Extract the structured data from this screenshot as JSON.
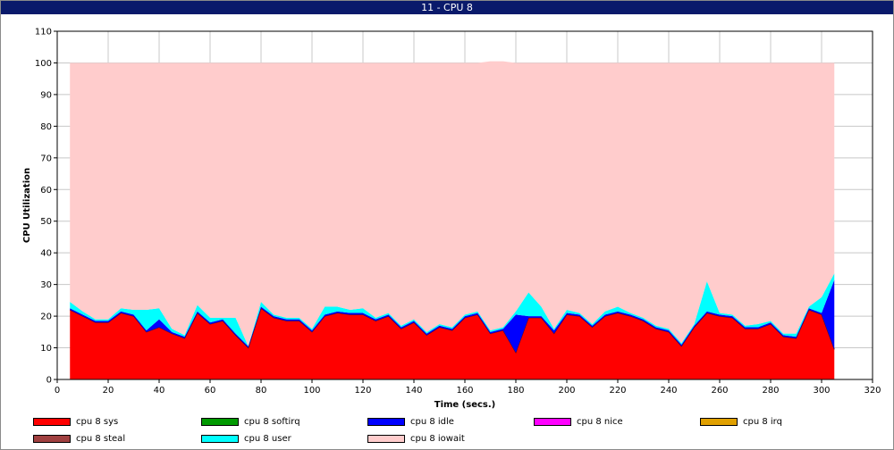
{
  "window": {
    "title": "11 - CPU 8"
  },
  "chart_data": {
    "type": "area",
    "stacked": true,
    "title": "",
    "xlabel": "Time (secs.)",
    "ylabel": "CPU Utilization",
    "xlim": [
      0,
      320
    ],
    "ylim": [
      0,
      110
    ],
    "xticks": [
      0,
      20,
      40,
      60,
      80,
      100,
      120,
      140,
      160,
      180,
      200,
      220,
      240,
      260,
      280,
      300,
      320
    ],
    "yticks": [
      0,
      10,
      20,
      30,
      40,
      50,
      60,
      70,
      80,
      90,
      100,
      110
    ],
    "grid": true,
    "legend_position": "bottom",
    "x": [
      5,
      10,
      15,
      20,
      25,
      30,
      35,
      40,
      45,
      50,
      55,
      60,
      65,
      70,
      75,
      80,
      85,
      90,
      95,
      100,
      105,
      110,
      115,
      120,
      125,
      130,
      135,
      140,
      145,
      150,
      155,
      160,
      165,
      170,
      175,
      180,
      185,
      190,
      195,
      200,
      205,
      210,
      215,
      220,
      225,
      230,
      235,
      240,
      245,
      250,
      255,
      260,
      265,
      270,
      275,
      280,
      285,
      290,
      295,
      300,
      305
    ],
    "series": [
      {
        "name": "cpu 8 sys",
        "color": "#ff0000",
        "values": [
          22,
          20,
          18,
          18,
          21,
          20,
          15,
          16.5,
          14.5,
          13,
          21,
          17.5,
          18.5,
          14,
          10,
          22.5,
          19.5,
          18.5,
          18.5,
          15,
          20,
          21,
          20.5,
          20.5,
          18.5,
          20,
          16,
          18,
          14,
          16.5,
          15.5,
          19.5,
          20.5,
          14.5,
          15.5,
          8.5,
          19.5,
          19.5,
          14.5,
          20.5,
          20,
          16.5,
          20,
          21,
          20,
          18.5,
          16,
          15,
          10.5,
          16.5,
          21,
          20,
          19.5,
          16,
          16,
          17.5,
          13.5,
          13,
          22,
          20.5,
          9.5
        ]
      },
      {
        "name": "cpu 8 softirq",
        "color": "#009900",
        "values": [
          0,
          0,
          0,
          0,
          0,
          0,
          0,
          0,
          0,
          0,
          0,
          0,
          0,
          0,
          0,
          0,
          0,
          0,
          0,
          0,
          0,
          0,
          0,
          0,
          0,
          0,
          0,
          0,
          0,
          0,
          0,
          0,
          0,
          0,
          0,
          0,
          0,
          0,
          0,
          0,
          0,
          0,
          0,
          0,
          0,
          0,
          0,
          0,
          0,
          0,
          0,
          0,
          0,
          0,
          0,
          0,
          0,
          0,
          0,
          0,
          0
        ]
      },
      {
        "name": "cpu 8 idle",
        "color": "#0000ff",
        "values": [
          0.5,
          0.5,
          0.5,
          0.5,
          0.5,
          0.5,
          0.5,
          2.5,
          0.5,
          0.5,
          0.5,
          0.5,
          0.5,
          0.5,
          0.5,
          0.5,
          0.5,
          0.5,
          0.5,
          0.5,
          0.5,
          0.5,
          0.5,
          0.5,
          0.5,
          0.5,
          0.5,
          0.5,
          0.5,
          0.5,
          0.5,
          0.5,
          0.5,
          0.5,
          0.5,
          12,
          0.5,
          0.5,
          1,
          0.5,
          0.5,
          0.5,
          0.5,
          0.5,
          0.5,
          0.5,
          0.5,
          0.5,
          0.5,
          0.5,
          0.5,
          0.5,
          0.5,
          0.5,
          0.5,
          0.5,
          0.5,
          0.5,
          0.5,
          0.5,
          22
        ]
      },
      {
        "name": "cpu 8 nice",
        "color": "#ff00ff",
        "values": [
          0,
          0,
          0,
          0,
          0,
          0,
          0,
          0,
          0,
          0,
          0,
          0,
          0,
          0,
          0,
          0,
          0,
          0,
          0,
          0,
          0,
          0,
          0,
          0,
          0,
          0,
          0,
          0,
          0,
          0,
          0,
          0,
          0,
          0,
          0,
          0,
          0,
          0,
          0,
          0,
          0,
          0,
          0,
          0,
          0,
          0,
          0,
          0,
          0,
          0,
          0,
          0,
          0,
          0,
          0,
          0,
          0,
          0,
          0,
          0,
          0
        ]
      },
      {
        "name": "cpu 8 irq",
        "color": "#e0a000",
        "values": [
          0,
          0,
          0,
          0,
          0,
          0,
          0,
          0,
          0,
          0,
          0,
          0,
          0,
          0,
          0,
          0,
          0,
          0,
          0,
          0,
          0,
          0,
          0,
          0,
          0,
          0,
          0,
          0,
          0,
          0,
          0,
          0,
          0,
          0,
          0,
          0,
          0,
          0,
          0,
          0,
          0,
          0,
          0,
          0,
          0,
          0,
          0,
          0,
          0,
          0,
          0,
          0,
          0,
          0,
          0,
          0,
          0,
          0,
          0,
          0,
          0
        ]
      },
      {
        "name": "cpu 8 steal",
        "color": "#a04040",
        "values": [
          0,
          0,
          0,
          0,
          0,
          0,
          0,
          0,
          0,
          0,
          0,
          0,
          0,
          0,
          0,
          0,
          0,
          0,
          0,
          0,
          0,
          0,
          0,
          0,
          0,
          0,
          0,
          0,
          0,
          0,
          0,
          0,
          0,
          0,
          0,
          0,
          0,
          0,
          0,
          0,
          0,
          0,
          0,
          0,
          0,
          0,
          0,
          0,
          0,
          0,
          0,
          0,
          0,
          0,
          0,
          0,
          0,
          0,
          0,
          0,
          0
        ]
      },
      {
        "name": "cpu 8 user",
        "color": "#00ffff",
        "values": [
          2,
          1,
          0.5,
          0.5,
          1,
          1.5,
          6.5,
          3.5,
          1,
          0.5,
          2,
          1.5,
          0.5,
          5,
          0,
          1.5,
          0.5,
          0.5,
          0.5,
          0.5,
          2.5,
          1.5,
          1,
          1.5,
          0.5,
          0.5,
          0.5,
          0.5,
          0.5,
          0.5,
          0.5,
          0.5,
          0.5,
          0.5,
          0.5,
          1,
          7.5,
          3,
          0.5,
          1,
          0.5,
          0.5,
          1,
          1.5,
          0.5,
          0.5,
          0.5,
          0.5,
          0.5,
          0.5,
          9.5,
          0.5,
          0.5,
          0.5,
          1,
          0.5,
          0.5,
          1,
          0.5,
          5,
          2
        ]
      },
      {
        "name": "cpu 8 iowait",
        "color": "#ffcccc",
        "values": [
          75.5,
          78.5,
          81,
          81,
          77.5,
          78,
          78,
          77.5,
          84,
          86,
          76.5,
          80.5,
          80.5,
          80.5,
          89.5,
          75.5,
          79.5,
          80.5,
          80.5,
          84,
          77,
          77,
          78,
          77.5,
          80.5,
          79,
          83,
          81,
          85,
          82.5,
          83.5,
          79.5,
          78.5,
          85,
          84,
          78.5,
          72.5,
          77,
          84,
          78,
          79,
          82.5,
          78.5,
          77,
          79,
          80.5,
          83,
          84,
          88.5,
          82.5,
          69,
          79,
          79.5,
          83,
          82.5,
          81.5,
          85.5,
          85.5,
          77,
          74,
          66.5
        ]
      }
    ]
  },
  "legend": [
    {
      "label": "cpu 8 sys",
      "color": "#ff0000"
    },
    {
      "label": "cpu 8 softirq",
      "color": "#009900"
    },
    {
      "label": "cpu 8 idle",
      "color": "#0000ff"
    },
    {
      "label": "cpu 8 nice",
      "color": "#ff00ff"
    },
    {
      "label": "cpu 8 irq",
      "color": "#e0a000"
    },
    {
      "label": "cpu 8 steal",
      "color": "#a04040"
    },
    {
      "label": "cpu 8 user",
      "color": "#00ffff"
    },
    {
      "label": "cpu 8 iowait",
      "color": "#ffcccc"
    }
  ]
}
